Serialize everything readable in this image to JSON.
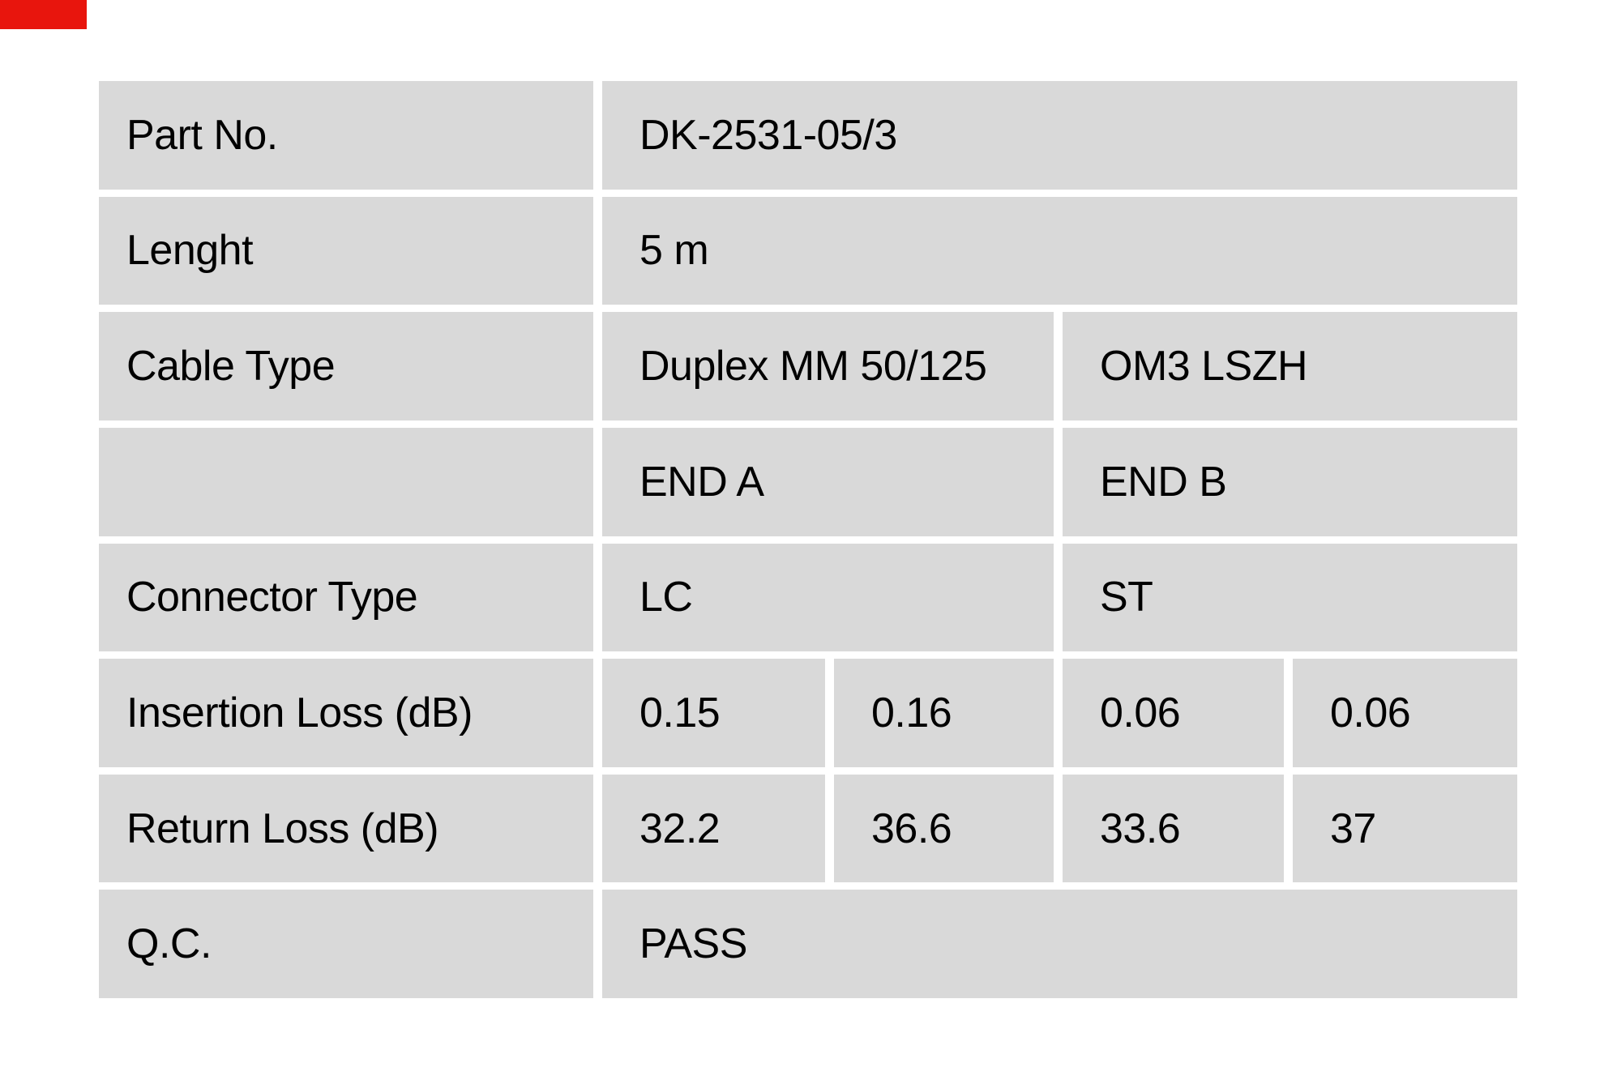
{
  "colors": {
    "page_background": "#ffffff",
    "cell_background": "#d9d9d9",
    "text_color": "#000000",
    "red_strip": "#e8150d"
  },
  "decorations": {
    "red_corner_strip": {
      "color": "#e8150d"
    }
  },
  "table": {
    "rows": [
      {
        "label": "Part No.",
        "value_full": "DK-2531-05/3"
      },
      {
        "label": "Lenght",
        "value_full": "5 m"
      },
      {
        "label": "Cable Type",
        "value_left": "Duplex MM 50/125",
        "value_right": "OM3 LSZH"
      },
      {
        "label": "",
        "value_left": "END A",
        "value_right": "END B"
      },
      {
        "label": "Connector Type",
        "value_left": "LC",
        "value_right": "ST"
      },
      {
        "label": "Insertion Loss (dB)",
        "values": [
          "0.15",
          "0.16",
          "0.06",
          "0.06"
        ]
      },
      {
        "label": "Return Loss (dB)",
        "values": [
          "32.2",
          "36.6",
          "33.6",
          "37"
        ]
      },
      {
        "label": "Q.C.",
        "value_full": "PASS"
      }
    ]
  }
}
